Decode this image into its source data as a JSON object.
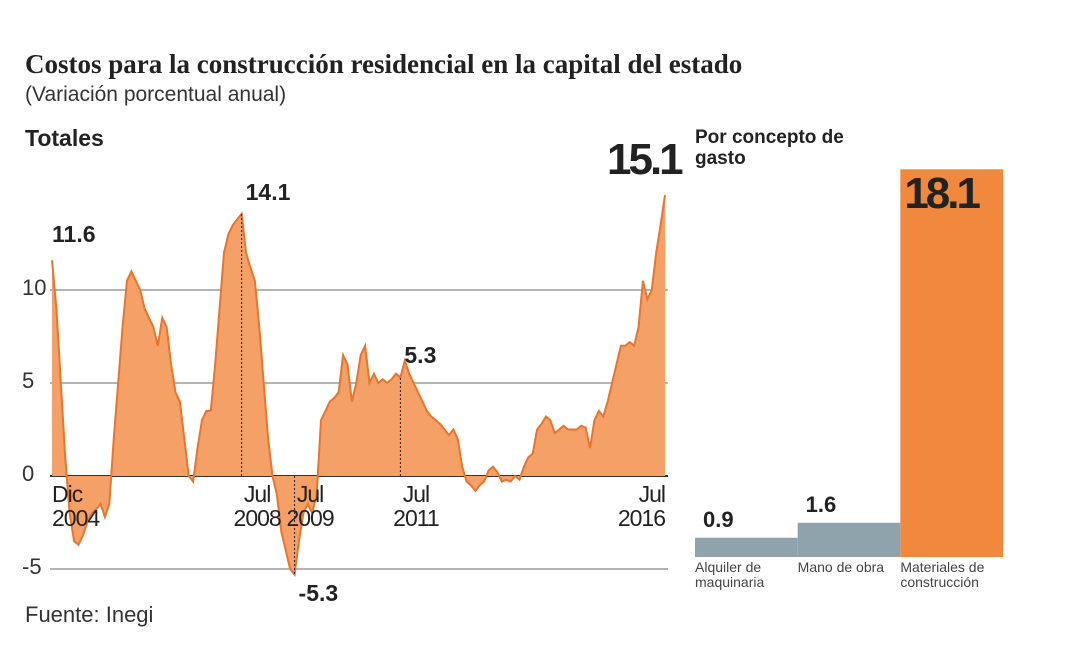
{
  "title": "Costos para la construcción residencial en la capital del estado",
  "subtitle": "(Variación porcentual anual)",
  "source": "Fuente: Inegi",
  "chart_data": [
    {
      "type": "area",
      "title": "Totales",
      "categories": [
        "Dic 2004",
        null,
        null,
        null,
        null,
        null,
        null,
        null,
        null,
        null,
        null,
        null,
        null,
        null,
        null,
        null,
        null,
        null,
        null,
        null,
        null,
        null,
        null,
        null,
        null,
        null,
        null,
        null,
        null,
        null,
        null,
        null,
        null,
        null,
        null,
        null,
        null,
        null,
        null,
        null,
        null,
        null,
        null,
        "Jul 2008",
        null,
        null,
        null,
        null,
        null,
        null,
        null,
        null,
        null,
        null,
        null,
        "Jul 2009",
        null,
        null,
        null,
        null,
        null,
        null,
        null,
        null,
        null,
        null,
        null,
        null,
        null,
        null,
        null,
        null,
        null,
        null,
        null,
        null,
        null,
        null,
        null,
        "Jul 2011",
        null,
        null,
        null,
        null,
        null,
        null,
        null,
        null,
        null,
        null,
        null,
        null,
        null,
        null,
        null,
        null,
        null,
        null,
        null,
        null,
        null,
        null,
        null,
        null,
        null,
        null,
        null,
        null,
        null,
        null,
        null,
        null,
        null,
        null,
        null,
        null,
        null,
        null,
        null,
        null,
        null,
        null,
        null,
        null,
        null,
        null,
        null,
        null,
        null,
        null,
        null,
        null,
        null,
        null,
        null,
        null,
        null,
        null,
        null,
        "Jul 2016"
      ],
      "values": [
        11.6,
        9,
        5,
        1,
        -2,
        -3.5,
        -3.7,
        -3.2,
        -2.5,
        -2,
        -1.8,
        -1.5,
        -2.2,
        -1.5,
        2,
        5,
        8,
        10.5,
        11,
        10.5,
        10,
        9,
        8.5,
        8,
        7,
        8.5,
        8,
        6,
        4.5,
        4,
        2,
        0,
        -0.3,
        1.5,
        3,
        3.5,
        3.5,
        6,
        9,
        12,
        13,
        13.5,
        13.8,
        14.1,
        12,
        11.2,
        10.5,
        8,
        5,
        2,
        0,
        -1,
        -3,
        -4,
        -5,
        -5.3,
        -3.5,
        -2,
        -1.5,
        -2,
        -1,
        3,
        3.5,
        4,
        4.2,
        4.5,
        6.5,
        6,
        4,
        5,
        6.5,
        7,
        5,
        5.5,
        5,
        5.2,
        5,
        5.2,
        5.5,
        5.3,
        6.2,
        5.5,
        5,
        4.5,
        4,
        3.5,
        3.2,
        3,
        2.8,
        2.5,
        2.2,
        2.5,
        2,
        0.5,
        -0.3,
        -0.5,
        -0.8,
        -0.5,
        -0.3,
        0.3,
        0.5,
        0.2,
        -0.3,
        -0.2,
        -0.3,
        0,
        -0.2,
        0.5,
        1,
        1.2,
        2.5,
        2.8,
        3.2,
        3,
        2.3,
        2.5,
        2.7,
        2.5,
        2.5,
        2.5,
        2.7,
        2.6,
        1.5,
        3,
        3.5,
        3.2,
        4,
        5,
        6,
        7,
        7,
        7.2,
        7,
        8,
        10.5,
        9.5,
        10,
        12,
        13.5,
        15.1
      ],
      "color": "#f4a066",
      "line_color": "#e8752e",
      "ylim": [
        -6,
        16
      ],
      "yticks": [
        10,
        5,
        0,
        -5
      ],
      "grid": true,
      "labeled": [
        0,
        43,
        55,
        79,
        139
      ],
      "guides": [
        43,
        55,
        79
      ]
    },
    {
      "type": "bar",
      "title": "Por concepto de gasto",
      "categories": [
        "Alquiler de maquinaria",
        "Mano de obra",
        "Materiales de construcción"
      ],
      "values": [
        0.9,
        1.6,
        18.1
      ],
      "colors": [
        "#8fa3ad",
        "#8fa3ad",
        "#f0883e"
      ],
      "ylim": [
        0,
        19
      ]
    }
  ]
}
